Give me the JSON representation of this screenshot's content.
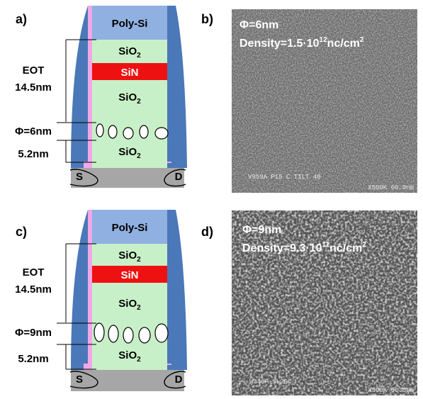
{
  "panels": [
    {
      "letter": "a)",
      "gate": "Poly-Si",
      "oxide_top": "SiO",
      "oxide_top_sub": "2",
      "nitride": "SiN",
      "oxide_mid": "SiO",
      "oxide_mid_sub": "2",
      "oxide_bot": "SiO",
      "oxide_bot_sub": "2",
      "eot_label": "EOT",
      "eot_value": "14.5nm",
      "phi": "Φ=6nm",
      "tunnel": "5.2nm",
      "source": "S",
      "drain": "D"
    },
    {
      "letter": "c)",
      "gate": "Poly-Si",
      "oxide_top": "SiO",
      "oxide_top_sub": "2",
      "nitride": "SiN",
      "oxide_mid": "SiO",
      "oxide_mid_sub": "2",
      "oxide_bot": "SiO",
      "oxide_bot_sub": "2",
      "eot_label": "EOT",
      "eot_value": "14.5nm",
      "phi": "Φ=9nm",
      "tunnel": "5.2nm",
      "source": "S",
      "drain": "D"
    }
  ],
  "sem_images": [
    {
      "letter": "b)",
      "phi": "Φ=6nm",
      "density_prefix": "Density=1.5·10",
      "density_exp": "12",
      "density_unit": "nc/cm",
      "density_unit_exp": "2",
      "caption_left": "V959A P15 C TILT 40",
      "caption_right": "X500K 60.0nm"
    },
    {
      "letter": "d)",
      "phi": "Φ=9nm",
      "density_prefix": "Density=9.3·10",
      "density_exp": "11",
      "density_unit": "nc/cm",
      "density_unit_exp": "2",
      "caption_left": "W340P-SL25C",
      "caption_right": "X500K 60.0nm"
    }
  ],
  "colors": {
    "poly_si": "#8fb0e0",
    "oxide": "#c8f0c8",
    "nitride": "#ee1111",
    "spacer": "#4a78b8",
    "liner": "#f0a8e8",
    "substrate": "#a6a6a6"
  }
}
